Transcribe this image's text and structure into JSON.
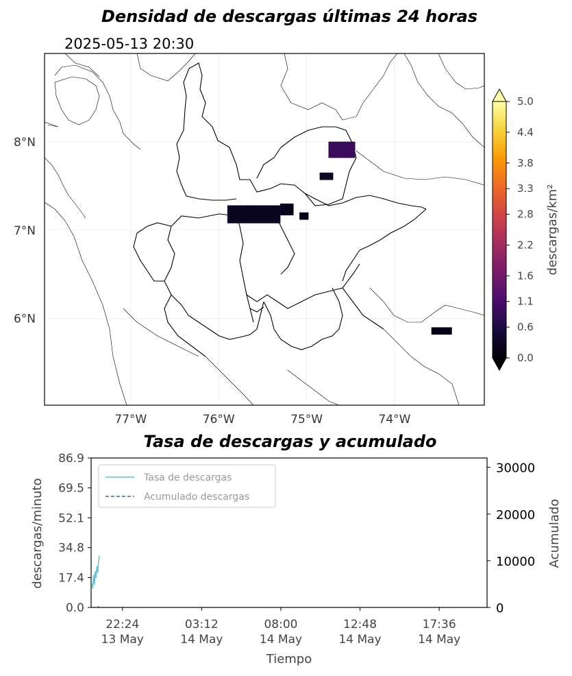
{
  "figure": {
    "map_title": "Densidad de descargas últimas 24 horas",
    "timestamp": "2025-05-13 20:30",
    "rate_title": "Tasa de descargas y acumulado"
  },
  "chart_data": [
    {
      "type": "heatmap",
      "title": "Densidad de descargas últimas 24 horas",
      "subtitle": "2025-05-13 20:30",
      "xlabel": "",
      "ylabel": "",
      "x_ticks": [
        {
          "value": -77,
          "label": "77°W"
        },
        {
          "value": -76,
          "label": "76°W"
        },
        {
          "value": -75,
          "label": "75°W"
        },
        {
          "value": -74,
          "label": "74°W"
        }
      ],
      "y_ticks": [
        {
          "value": 6,
          "label": "6°N"
        },
        {
          "value": 7,
          "label": "7°N"
        },
        {
          "value": 8,
          "label": "8°N"
        }
      ],
      "xlim": [
        -77.98,
        -72.98
      ],
      "ylim": [
        5.02,
        9.0
      ],
      "grid": true,
      "colorbar": {
        "label": "descargas/km²",
        "min": 0.0,
        "max": 5.0,
        "ticks": [
          "0.0",
          "0.6",
          "1.1",
          "1.6",
          "2.2",
          "2.8",
          "3.3",
          "3.8",
          "4.4",
          "5.0"
        ],
        "colors": [
          "#000004",
          "#1b0c41",
          "#4a0c6b",
          "#781c6d",
          "#a52c60",
          "#cf4446",
          "#ed6925",
          "#fb9b06",
          "#f7d13d",
          "#fcffa4"
        ],
        "extend": "both"
      },
      "cells": [
        {
          "lon": -75.9,
          "lat": 7.28,
          "lon2": -75.3,
          "lat2": 7.08,
          "value": 0.25
        },
        {
          "lon": -75.3,
          "lat": 7.3,
          "lon2": -75.15,
          "lat2": 7.17,
          "value": 0.2
        },
        {
          "lon": -75.08,
          "lat": 7.2,
          "lon2": -74.98,
          "lat2": 7.12,
          "value": 0.15
        },
        {
          "lon": -74.85,
          "lat": 7.65,
          "lon2": -74.7,
          "lat2": 7.57,
          "value": 0.3
        },
        {
          "lon": -74.75,
          "lat": 8.0,
          "lon2": -74.45,
          "lat2": 7.82,
          "value": 0.9
        },
        {
          "lon": -73.58,
          "lat": 5.9,
          "lon2": -73.35,
          "lat2": 5.82,
          "value": 0.15
        }
      ]
    },
    {
      "type": "line",
      "title": "Tasa de descargas y acumulado",
      "xlabel": "Tiempo",
      "ylabel": "descargas/minuto",
      "y2label": "Acumulado",
      "x_range_hours": [
        0,
        24
      ],
      "x_ticks": [
        {
          "value": 1.9,
          "label": [
            "22:24",
            "13 May"
          ]
        },
        {
          "value": 6.7,
          "label": [
            "03:12",
            "14 May"
          ]
        },
        {
          "value": 11.5,
          "label": [
            "08:00",
            "14 May"
          ]
        },
        {
          "value": 16.3,
          "label": [
            "12:48",
            "14 May"
          ]
        },
        {
          "value": 21.1,
          "label": [
            "17:36",
            "14 May"
          ]
        }
      ],
      "ylim": [
        0,
        86.9
      ],
      "y_ticks": [
        "0.0",
        "17.4",
        "34.8",
        "52.1",
        "69.5",
        "86.9"
      ],
      "y2lim": [
        0,
        32000
      ],
      "y2_ticks": [
        "0",
        "10000",
        "20000",
        "30000"
      ],
      "legend": "top-left",
      "series": [
        {
          "name": "Tasa de descargas",
          "axis": "left",
          "color": "#5bc4c8",
          "style": "solid",
          "x": [
            0.05,
            0.1,
            0.15,
            0.2,
            0.25,
            0.3,
            0.35,
            0.4,
            0.45,
            0.5
          ],
          "y": [
            14,
            11,
            19,
            13,
            21,
            17,
            24,
            20,
            27,
            30
          ]
        },
        {
          "name": "Acumulado descargas",
          "axis": "right",
          "color": "#2f6f8f",
          "style": "dashed",
          "x": [
            0.05,
            0.2,
            0.35,
            0.5
          ],
          "y": [
            20,
            60,
            110,
            160
          ]
        }
      ]
    }
  ]
}
